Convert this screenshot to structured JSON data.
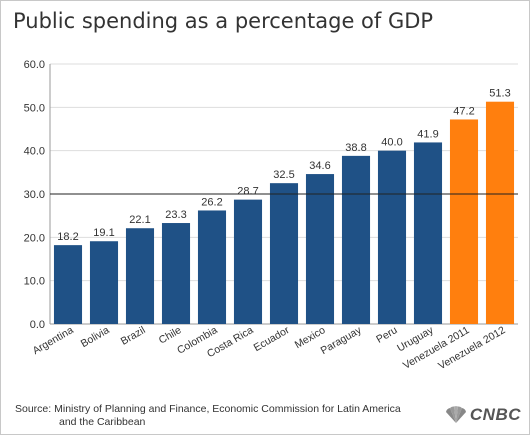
{
  "title": "Public spending as a percentage of GDP",
  "source_prefix": "Source:",
  "source_line1": "Ministry of Planning and Finance, Economic Commission for Latin America",
  "source_line2": "and the Caribbean",
  "logo": {
    "text": "CNBC",
    "icon": "peacock-icon"
  },
  "colors": {
    "bar": "#1f5186",
    "highlight": "#ff7f0e",
    "reference_line": "#222222",
    "grid": "#dddddd",
    "text": "#333333"
  },
  "chart_data": {
    "type": "bar",
    "categories": [
      "Argentina",
      "Bolivia",
      "Brazil",
      "Chile",
      "Colombia",
      "Costa Rica",
      "Ecuador",
      "Mexico",
      "Paraguay",
      "Peru",
      "Uruguay",
      "Venezuela 2011",
      "Venezuela 2012"
    ],
    "values": [
      18.2,
      19.1,
      22.1,
      23.3,
      26.2,
      28.7,
      32.5,
      34.6,
      38.8,
      40.0,
      41.9,
      47.2,
      51.3
    ],
    "value_labels": [
      "18.2",
      "19.1",
      "22.1",
      "23.3",
      "26.2",
      "28.7",
      "32.5",
      "34.6",
      "38.8",
      "40.0",
      "41.9",
      "47.2",
      "51.3"
    ],
    "highlight_categories": [
      "Venezuela 2011",
      "Venezuela 2012"
    ],
    "title": "Public spending as a percentage of GDP",
    "xlabel": "",
    "ylabel": "",
    "ylim": [
      0,
      60
    ],
    "yticks": [
      0,
      10,
      20,
      30,
      40,
      50,
      60
    ],
    "ytick_labels": [
      "0.0",
      "10.0",
      "20.0",
      "30.0",
      "40.0",
      "50.0",
      "60.0"
    ],
    "reference_line": 30,
    "grid": true,
    "legend": "none"
  }
}
